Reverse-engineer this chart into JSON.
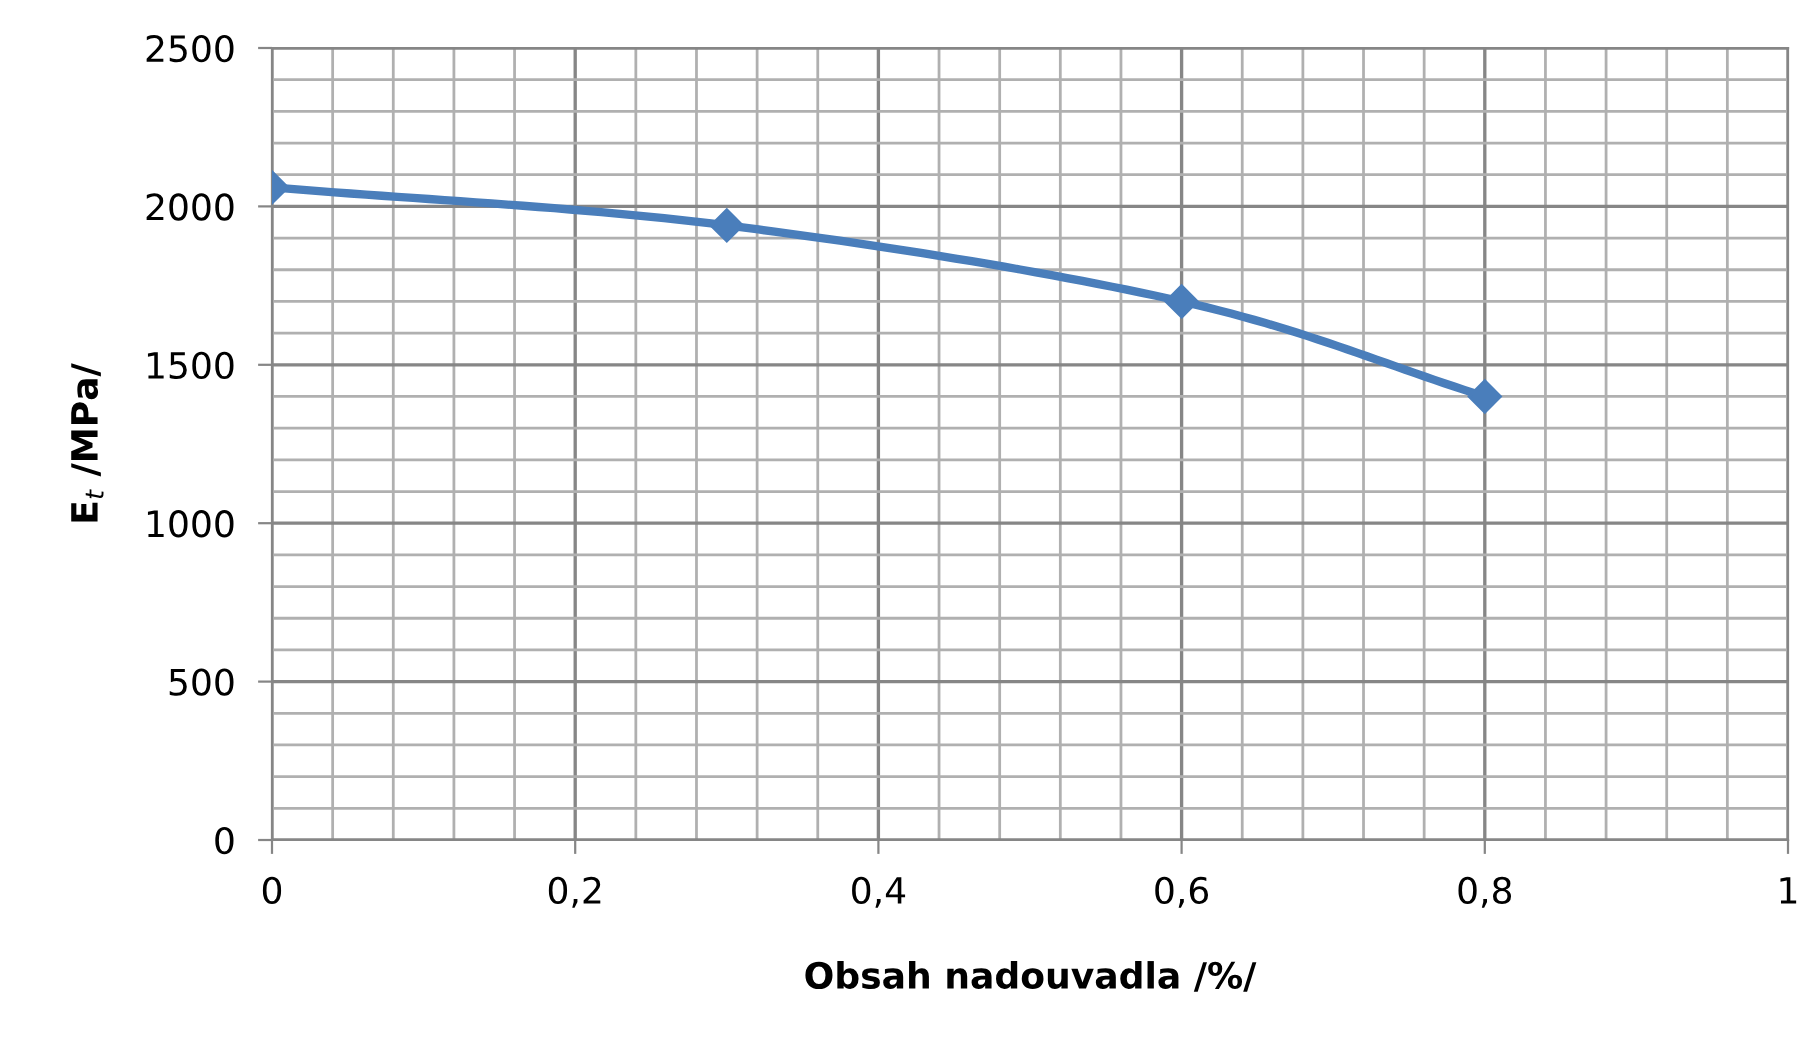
{
  "chart_data": {
    "type": "line",
    "xlabel": "Obsah nadouvadla /%/",
    "ylabel": "E$_{t}$ /MPa/",
    "x": [
      0,
      0.3,
      0.6,
      0.8
    ],
    "series": [
      {
        "color": "#4a7ebb",
        "values": [
          2060,
          1940,
          1700,
          1400
        ]
      }
    ],
    "xlim": [
      0,
      1
    ],
    "xticks": [
      0,
      {
        "value": 0.2,
        "label": "0,2"
      },
      {
        "value": 0.4,
        "label": "0,4"
      },
      {
        "value": 0.6,
        "label": "0,6"
      },
      {
        "value": 0.8,
        "label": "0,8"
      },
      1
    ],
    "ylim": [
      0,
      2500
    ],
    "yticks": [
      0,
      500,
      1000,
      1500,
      2000,
      2500
    ],
    "grid": true,
    "marker": "diamond",
    "line_style": "solid",
    "legend": false
  }
}
